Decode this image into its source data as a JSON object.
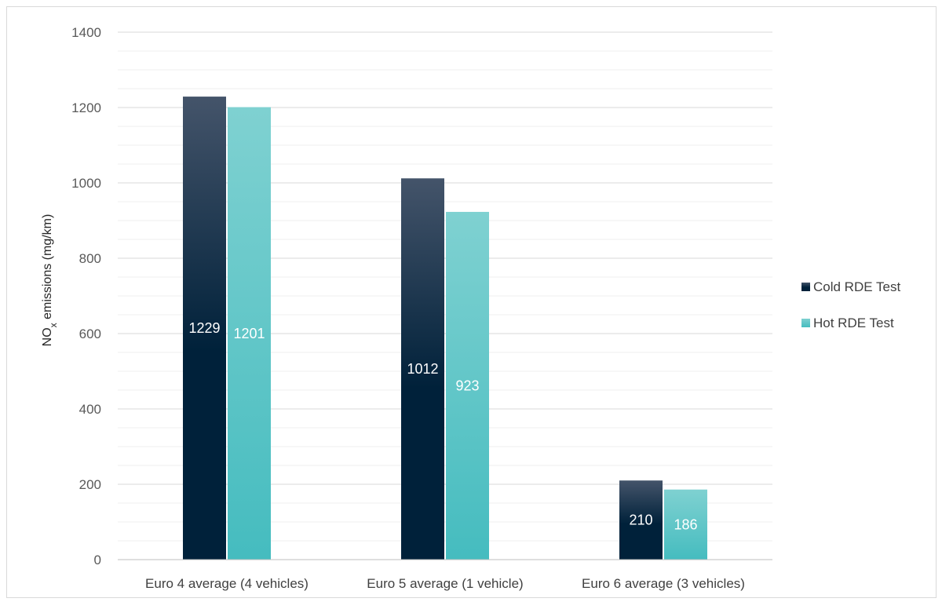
{
  "chart_data": {
    "type": "bar",
    "categories": [
      "Euro 4 average (4 vehicles)",
      "Euro 5 average (1 vehicle)",
      "Euro 6 average (3 vehicles)"
    ],
    "series": [
      {
        "name": "Cold RDE Test",
        "values": [
          1229,
          1012,
          210
        ],
        "color_top": "#44546a",
        "color_bottom": "#00213a"
      },
      {
        "name": "Hot RDE Test",
        "values": [
          1201,
          923,
          186
        ],
        "color_top": "#7fd1d1",
        "color_bottom": "#45bcbf"
      }
    ],
    "ylabel_main": "NO",
    "ylabel_sub": "x",
    "ylabel_rest": " emissions (mg/km)",
    "ylim": [
      0,
      1400
    ],
    "y_major_ticks": [
      0,
      200,
      400,
      600,
      800,
      1000,
      1200,
      1400
    ],
    "y_minor_step": 50,
    "grid": true,
    "legend_position": "right",
    "colors": {
      "major_grid": "#d9d9d9",
      "minor_grid": "#efefef"
    }
  }
}
